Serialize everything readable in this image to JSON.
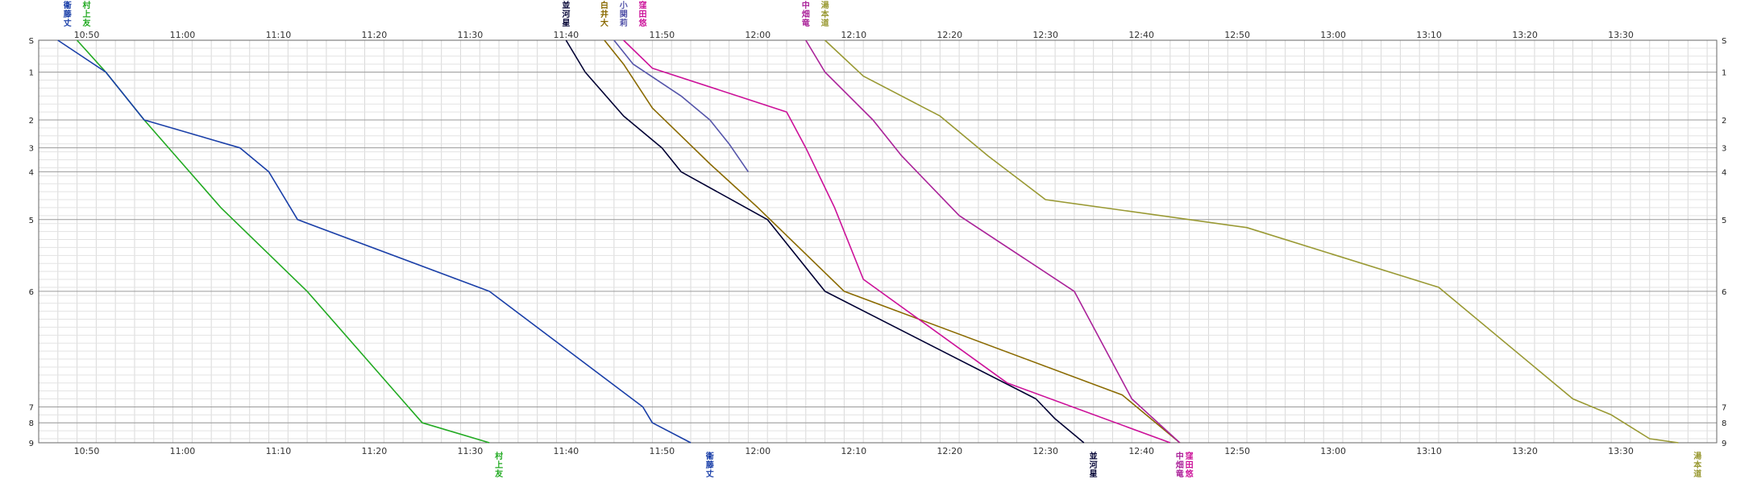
{
  "chart_data": {
    "type": "line",
    "x_ticks": [
      "10:50",
      "11:00",
      "11:10",
      "11:20",
      "11:30",
      "11:40",
      "11:50",
      "12:00",
      "12:10",
      "12:20",
      "12:30",
      "12:40",
      "12:50",
      "13:00",
      "13:10",
      "13:20",
      "13:30"
    ],
    "x_range": [
      "10:45",
      "13:40"
    ],
    "stations": [
      {
        "label": "S",
        "pos": 0
      },
      {
        "label": "1",
        "pos": 0.8
      },
      {
        "label": "2",
        "pos": 2
      },
      {
        "label": "3",
        "pos": 2.7
      },
      {
        "label": "4",
        "pos": 3.3
      },
      {
        "label": "5",
        "pos": 4.5
      },
      {
        "label": "6",
        "pos": 6.3
      },
      {
        "label": "7",
        "pos": 9.2
      },
      {
        "label": "8",
        "pos": 9.6
      },
      {
        "label": "9",
        "pos": 10.1
      }
    ],
    "grid": true,
    "minor_x_step_minutes": 2,
    "minor_y_step": 0.2,
    "series": [
      {
        "name": [
          "村",
          "上",
          "友"
        ],
        "color": "#22aa22",
        "top_label_x": "10:50",
        "bottom_label_x": "11:33",
        "points": [
          [
            "10:49",
            0
          ],
          [
            "10:52",
            0.8
          ],
          [
            "10:56",
            2
          ],
          [
            "11:00",
            3.1
          ],
          [
            "11:04",
            4.2
          ],
          [
            "11:13",
            6.3
          ],
          [
            "11:25",
            9.6
          ],
          [
            "11:32",
            10.1
          ]
        ]
      },
      {
        "name": [
          "衞",
          "藤",
          "丈"
        ],
        "color": "#1a3fa8",
        "top_label_x": "10:48",
        "bottom_label_x": "11:55",
        "points": [
          [
            "10:47",
            0
          ],
          [
            "10:52",
            0.8
          ],
          [
            "10:56",
            2
          ],
          [
            "11:06",
            2.7
          ],
          [
            "11:09",
            3.3
          ],
          [
            "11:12",
            4.5
          ],
          [
            "11:32",
            6.3
          ],
          [
            "11:48",
            9.2
          ],
          [
            "11:49",
            9.6
          ],
          [
            "11:53",
            10.1
          ]
        ]
      },
      {
        "name": [
          "並",
          "河",
          "星"
        ],
        "color": "#000033",
        "top_label_x": "11:40",
        "bottom_label_x": "12:35",
        "points": [
          [
            "11:40",
            0
          ],
          [
            "11:42",
            0.8
          ],
          [
            "11:46",
            1.9
          ],
          [
            "11:50",
            2.7
          ],
          [
            "11:52",
            3.3
          ],
          [
            "12:01",
            4.5
          ],
          [
            "12:07",
            6.3
          ],
          [
            "12:29",
            9
          ],
          [
            "12:31",
            9.5
          ],
          [
            "12:34",
            10.1
          ]
        ]
      },
      {
        "name": [
          "白",
          "井",
          "大"
        ],
        "color": "#8a6a00",
        "top_label_x": "11:44",
        "bottom_label_x": null,
        "points": [
          [
            "11:44",
            0
          ],
          [
            "11:46",
            0.6
          ],
          [
            "11:49",
            1.7
          ],
          [
            "11:52",
            2.4
          ],
          [
            "11:55",
            3.1
          ],
          [
            "12:00",
            4.2
          ],
          [
            "12:09",
            6.3
          ],
          [
            "12:38",
            8.9
          ],
          [
            "12:44",
            10.1
          ]
        ]
      },
      {
        "name": [
          "小",
          "関",
          "莉"
        ],
        "color": "#5555aa",
        "top_label_x": "11:46",
        "bottom_label_x": null,
        "points": [
          [
            "11:45",
            0
          ],
          [
            "11:47",
            0.6
          ],
          [
            "11:52",
            1.4
          ],
          [
            "11:55",
            2
          ],
          [
            "11:57",
            2.6
          ],
          [
            "11:59",
            3.3
          ]
        ]
      },
      {
        "name": [
          "窪",
          "田",
          "悠"
        ],
        "color": "#cc1199",
        "top_label_x": "11:48",
        "bottom_label_x": "12:45",
        "points": [
          [
            "11:46",
            0
          ],
          [
            "11:49",
            0.7
          ],
          [
            "12:03",
            1.8
          ],
          [
            "12:05",
            2.7
          ],
          [
            "12:08",
            4.2
          ],
          [
            "12:11",
            6
          ],
          [
            "12:26",
            8.6
          ],
          [
            "12:43",
            10.1
          ]
        ]
      },
      {
        "name": [
          "中",
          "畑",
          "竜"
        ],
        "color": "#aa2299",
        "top_label_x": "12:05",
        "bottom_label_x": "12:44",
        "points": [
          [
            "12:05",
            0
          ],
          [
            "12:07",
            0.8
          ],
          [
            "12:12",
            2
          ],
          [
            "12:15",
            2.9
          ],
          [
            "12:21",
            4.4
          ],
          [
            "12:33",
            6.3
          ],
          [
            "12:39",
            9
          ],
          [
            "12:44",
            10.1
          ]
        ]
      },
      {
        "name": [
          "湯",
          "本",
          "道"
        ],
        "color": "#999933",
        "top_label_x": "12:07",
        "bottom_label_x": "13:38",
        "points": [
          [
            "12:07",
            0
          ],
          [
            "12:11",
            0.9
          ],
          [
            "12:19",
            1.9
          ],
          [
            "12:24",
            2.9
          ],
          [
            "12:30",
            4
          ],
          [
            "12:51",
            4.7
          ],
          [
            "13:11",
            6.2
          ],
          [
            "13:25",
            9
          ],
          [
            "13:29",
            9.4
          ],
          [
            "13:33",
            10
          ],
          [
            "13:36",
            10.1
          ]
        ]
      }
    ]
  }
}
